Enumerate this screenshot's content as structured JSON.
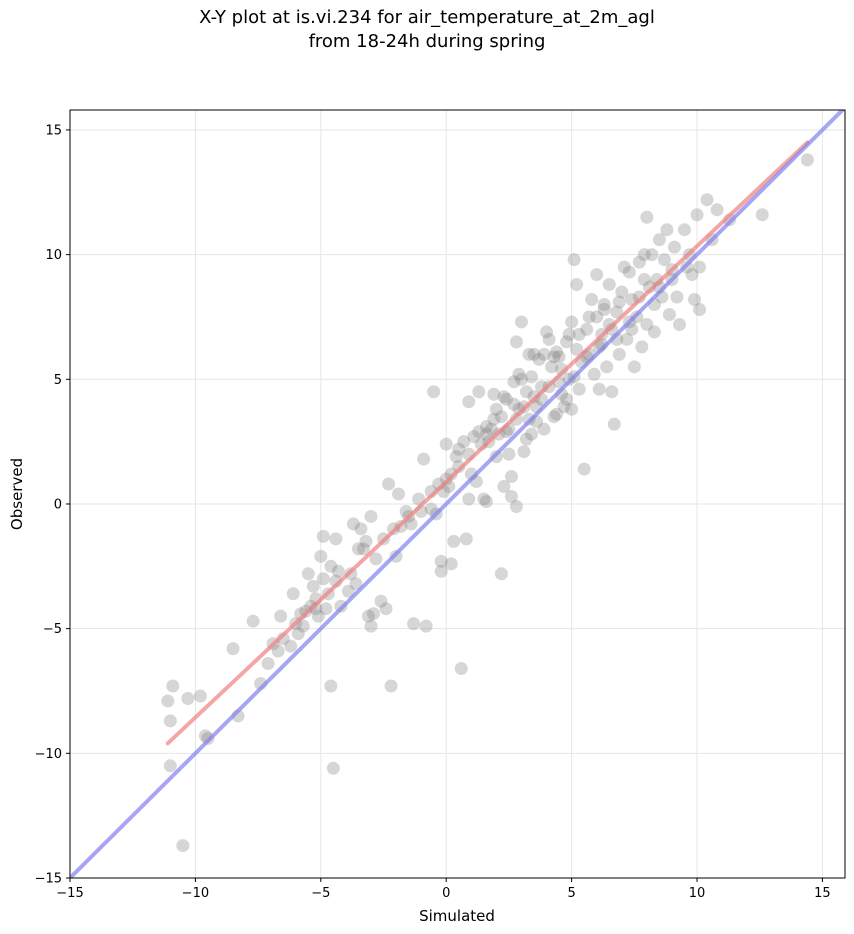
{
  "title": {
    "line1": "X-Y plot at is.vi.234 for air_temperature_at_2m_agl",
    "line2": "from 18-24h during spring"
  },
  "colors": {
    "points": "#808080",
    "fit_line": "#f08080",
    "one_to_one": "#8080f0",
    "grid": "#e6e6e6"
  },
  "chart_data": {
    "type": "scatter",
    "title": "X-Y plot at is.vi.234 for air_temperature_at_2m_agl from 18-24h during spring",
    "xlabel": "Simulated",
    "ylabel": "Observed",
    "xlim": [
      -15,
      15.9
    ],
    "ylim": [
      -15,
      15.8
    ],
    "xticks": [
      -15,
      -10,
      -5,
      0,
      5,
      10,
      15
    ],
    "yticks": [
      -15,
      -10,
      -5,
      0,
      5,
      10,
      15
    ],
    "xtick_labels": [
      "−15",
      "−10",
      "−5",
      "0",
      "5",
      "10",
      "15"
    ],
    "ytick_labels": [
      "−15",
      "−10",
      "−5",
      "0",
      "5",
      "10",
      "15"
    ],
    "grid": true,
    "lines": [
      {
        "kind": "fit",
        "x": [
          -11.1,
          14.4
        ],
        "y": [
          -9.6,
          14.5
        ]
      },
      {
        "kind": "one_to_one",
        "x": [
          -15,
          15.9
        ],
        "y": [
          -15,
          15.9
        ]
      }
    ],
    "points": [
      [
        -11.1,
        -7.9
      ],
      [
        -10.9,
        -7.3
      ],
      [
        -11.0,
        -8.7
      ],
      [
        -11.0,
        -10.5
      ],
      [
        -10.5,
        -13.7
      ],
      [
        -10.3,
        -7.8
      ],
      [
        -9.8,
        -7.7
      ],
      [
        -9.6,
        -9.3
      ],
      [
        -9.5,
        -9.4
      ],
      [
        -8.5,
        -5.8
      ],
      [
        -8.3,
        -8.5
      ],
      [
        -7.7,
        -4.7
      ],
      [
        -7.4,
        -7.2
      ],
      [
        -7.1,
        -6.4
      ],
      [
        -6.9,
        -5.6
      ],
      [
        -6.7,
        -5.9
      ],
      [
        -6.6,
        -4.5
      ],
      [
        -6.5,
        -5.4
      ],
      [
        -6.2,
        -5.7
      ],
      [
        -6.1,
        -3.6
      ],
      [
        -6.0,
        -4.8
      ],
      [
        -5.9,
        -5.2
      ],
      [
        -5.8,
        -4.4
      ],
      [
        -5.6,
        -4.3
      ],
      [
        -5.5,
        -2.8
      ],
      [
        -5.4,
        -4.1
      ],
      [
        -5.3,
        -3.3
      ],
      [
        -5.2,
        -3.8
      ],
      [
        -5.1,
        -4.5
      ],
      [
        -5.0,
        -2.1
      ],
      [
        -4.9,
        -3.0
      ],
      [
        -4.9,
        -1.3
      ],
      [
        -4.8,
        -4.2
      ],
      [
        -4.7,
        -3.6
      ],
      [
        -4.6,
        -2.5
      ],
      [
        -4.6,
        -7.3
      ],
      [
        -4.5,
        -10.6
      ],
      [
        -4.4,
        -1.4
      ],
      [
        -4.3,
        -2.7
      ],
      [
        -4.2,
        -4.1
      ],
      [
        -3.9,
        -3.5
      ],
      [
        -3.7,
        -0.8
      ],
      [
        -3.6,
        -3.2
      ],
      [
        -3.5,
        -1.8
      ],
      [
        -3.4,
        -1.0
      ],
      [
        -3.2,
        -1.5
      ],
      [
        -3.1,
        -4.5
      ],
      [
        -3.0,
        -4.9
      ],
      [
        -3.0,
        -0.5
      ],
      [
        -2.9,
        -4.4
      ],
      [
        -2.8,
        -2.2
      ],
      [
        -2.6,
        -3.9
      ],
      [
        -2.4,
        -4.2
      ],
      [
        -2.3,
        0.8
      ],
      [
        -2.2,
        -7.3
      ],
      [
        -2.1,
        -1.0
      ],
      [
        -2.0,
        -2.1
      ],
      [
        -1.9,
        0.4
      ],
      [
        -1.8,
        -0.9
      ],
      [
        -1.6,
        -0.3
      ],
      [
        -1.4,
        -0.8
      ],
      [
        -1.3,
        -4.8
      ],
      [
        -1.1,
        0.2
      ],
      [
        -0.9,
        1.8
      ],
      [
        -0.8,
        -4.9
      ],
      [
        -0.6,
        -0.2
      ],
      [
        -0.5,
        4.5
      ],
      [
        -0.4,
        -0.4
      ],
      [
        -0.3,
        0.8
      ],
      [
        -0.2,
        -2.3
      ],
      [
        -0.2,
        -2.7
      ],
      [
        -0.1,
        0.5
      ],
      [
        0.0,
        1.0
      ],
      [
        0.0,
        2.4
      ],
      [
        0.1,
        0.7
      ],
      [
        0.2,
        -2.4
      ],
      [
        0.3,
        -1.5
      ],
      [
        0.4,
        1.9
      ],
      [
        0.5,
        2.2
      ],
      [
        0.6,
        -6.6
      ],
      [
        0.7,
        2.5
      ],
      [
        0.8,
        -1.4
      ],
      [
        0.9,
        0.2
      ],
      [
        0.9,
        4.1
      ],
      [
        1.0,
        1.2
      ],
      [
        1.1,
        2.7
      ],
      [
        1.2,
        0.9
      ],
      [
        1.3,
        4.5
      ],
      [
        1.4,
        2.4
      ],
      [
        1.5,
        0.2
      ],
      [
        1.6,
        3.1
      ],
      [
        1.6,
        0.1
      ],
      [
        1.7,
        2.5
      ],
      [
        1.8,
        3.0
      ],
      [
        1.9,
        4.4
      ],
      [
        2.0,
        1.9
      ],
      [
        2.1,
        2.8
      ],
      [
        2.2,
        -2.8
      ],
      [
        2.2,
        3.5
      ],
      [
        2.3,
        0.7
      ],
      [
        2.4,
        4.2
      ],
      [
        2.5,
        2.0
      ],
      [
        2.6,
        0.3
      ],
      [
        2.6,
        1.1
      ],
      [
        2.7,
        4.9
      ],
      [
        2.8,
        6.5
      ],
      [
        2.8,
        -0.1
      ],
      [
        2.9,
        3.8
      ],
      [
        3.0,
        7.3
      ],
      [
        3.1,
        2.1
      ],
      [
        3.2,
        4.5
      ],
      [
        3.3,
        3.4
      ],
      [
        3.4,
        5.1
      ],
      [
        3.4,
        2.8
      ],
      [
        3.5,
        6.0
      ],
      [
        3.6,
        3.9
      ],
      [
        3.7,
        5.8
      ],
      [
        3.8,
        4.2
      ],
      [
        3.9,
        3.0
      ],
      [
        4.0,
        6.9
      ],
      [
        4.1,
        4.7
      ],
      [
        4.2,
        5.5
      ],
      [
        4.3,
        3.5
      ],
      [
        4.4,
        6.1
      ],
      [
        4.5,
        4.9
      ],
      [
        4.6,
        5.4
      ],
      [
        4.7,
        3.9
      ],
      [
        4.8,
        6.5
      ],
      [
        4.9,
        5.0
      ],
      [
        5.0,
        7.3
      ],
      [
        5.0,
        3.8
      ],
      [
        5.1,
        9.8
      ],
      [
        5.2,
        8.8
      ],
      [
        5.2,
        6.2
      ],
      [
        5.3,
        4.6
      ],
      [
        5.4,
        5.7
      ],
      [
        5.5,
        1.4
      ],
      [
        5.6,
        7.0
      ],
      [
        5.7,
        6.0
      ],
      [
        5.8,
        8.2
      ],
      [
        5.9,
        5.2
      ],
      [
        6.0,
        7.5
      ],
      [
        6.0,
        9.2
      ],
      [
        6.1,
        4.6
      ],
      [
        6.2,
        6.8
      ],
      [
        6.3,
        8.0
      ],
      [
        6.4,
        5.5
      ],
      [
        6.5,
        7.2
      ],
      [
        6.5,
        8.8
      ],
      [
        6.6,
        4.5
      ],
      [
        6.7,
        3.2
      ],
      [
        6.8,
        7.7
      ],
      [
        6.9,
        6.0
      ],
      [
        7.0,
        8.5
      ],
      [
        7.1,
        9.5
      ],
      [
        7.2,
        6.6
      ],
      [
        7.3,
        7.3
      ],
      [
        7.4,
        8.2
      ],
      [
        7.5,
        5.5
      ],
      [
        7.6,
        7.5
      ],
      [
        7.7,
        9.7
      ],
      [
        7.8,
        6.3
      ],
      [
        7.9,
        10.0
      ],
      [
        8.0,
        11.5
      ],
      [
        8.0,
        7.2
      ],
      [
        8.1,
        8.7
      ],
      [
        8.2,
        10.0
      ],
      [
        8.3,
        6.9
      ],
      [
        8.4,
        9.0
      ],
      [
        8.5,
        10.6
      ],
      [
        8.6,
        8.3
      ],
      [
        8.7,
        9.8
      ],
      [
        8.8,
        11.0
      ],
      [
        8.9,
        7.6
      ],
      [
        9.0,
        9.4
      ],
      [
        9.1,
        10.3
      ],
      [
        9.2,
        8.3
      ],
      [
        9.3,
        7.2
      ],
      [
        9.5,
        11.0
      ],
      [
        9.6,
        9.5
      ],
      [
        9.7,
        10.0
      ],
      [
        9.8,
        9.2
      ],
      [
        9.9,
        8.2
      ],
      [
        10.0,
        11.6
      ],
      [
        10.1,
        7.8
      ],
      [
        10.1,
        9.5
      ],
      [
        10.4,
        12.2
      ],
      [
        10.6,
        10.6
      ],
      [
        10.8,
        11.8
      ],
      [
        11.3,
        11.4
      ],
      [
        12.6,
        11.6
      ],
      [
        14.4,
        13.8
      ],
      [
        4.3,
        5.9
      ],
      [
        3.9,
        6.0
      ],
      [
        4.6,
        4.4
      ],
      [
        5.1,
        5.1
      ],
      [
        2.5,
        3.0
      ],
      [
        2.0,
        3.8
      ],
      [
        3.2,
        2.6
      ],
      [
        3.6,
        3.3
      ],
      [
        4.8,
        4.2
      ],
      [
        4.4,
        3.6
      ],
      [
        3.0,
        5.0
      ],
      [
        2.7,
        4.0
      ],
      [
        1.6,
        2.8
      ],
      [
        0.9,
        2.0
      ],
      [
        0.5,
        1.5
      ],
      [
        0.2,
        1.2
      ],
      [
        -0.6,
        0.5
      ],
      [
        -1.0,
        -0.3
      ],
      [
        -1.5,
        -0.5
      ],
      [
        -2.5,
        -1.4
      ],
      [
        -3.3,
        -1.8
      ],
      [
        -3.8,
        -2.8
      ],
      [
        -4.4,
        -3.1
      ],
      [
        -5.2,
        -4.2
      ],
      [
        -5.7,
        -4.9
      ],
      [
        6.1,
        6.3
      ],
      [
        6.8,
        6.6
      ],
      [
        7.4,
        7.0
      ],
      [
        5.6,
        5.9
      ],
      [
        5.3,
        6.8
      ],
      [
        4.1,
        6.6
      ],
      [
        3.3,
        6.0
      ],
      [
        2.9,
        5.2
      ],
      [
        2.3,
        4.3
      ],
      [
        1.9,
        3.4
      ],
      [
        1.3,
        2.9
      ],
      [
        8.5,
        8.7
      ],
      [
        9.0,
        9.0
      ],
      [
        8.3,
        8.0
      ],
      [
        7.7,
        8.3
      ],
      [
        6.6,
        7.0
      ],
      [
        6.2,
        6.4
      ],
      [
        5.7,
        7.5
      ],
      [
        4.9,
        6.8
      ],
      [
        4.5,
        5.9
      ],
      [
        3.8,
        4.7
      ],
      [
        3.5,
        4.3
      ],
      [
        3.1,
        3.9
      ],
      [
        2.8,
        3.4
      ],
      [
        2.4,
        2.9
      ],
      [
        6.3,
        7.8
      ],
      [
        6.9,
        8.1
      ],
      [
        7.3,
        9.3
      ],
      [
        7.9,
        9.0
      ]
    ]
  }
}
